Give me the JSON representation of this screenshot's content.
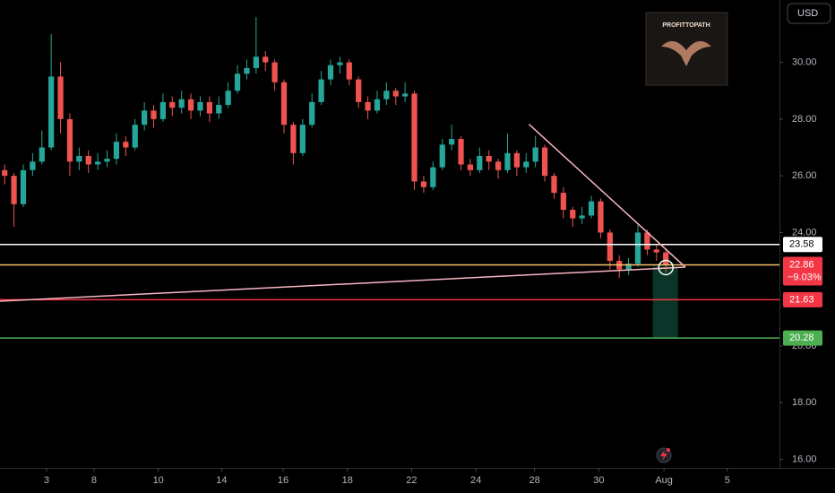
{
  "chart_data": {
    "type": "candlestick",
    "currency": "USD",
    "watermark": "PROFITTOPATH",
    "xlim": [
      -0.5,
      83.2
    ],
    "xticks": [
      {
        "value": 4.5,
        "label": "3"
      },
      {
        "value": 9.6,
        "label": "8"
      },
      {
        "value": 16.5,
        "label": "10"
      },
      {
        "value": 23.3,
        "label": "14"
      },
      {
        "value": 29.9,
        "label": "16"
      },
      {
        "value": 36.8,
        "label": "18"
      },
      {
        "value": 43.7,
        "label": "22"
      },
      {
        "value": 50.6,
        "label": "24"
      },
      {
        "value": 56.9,
        "label": "28"
      },
      {
        "value": 63.8,
        "label": "30"
      },
      {
        "value": 70.8,
        "label": "Aug"
      },
      {
        "value": 77.6,
        "label": "5"
      }
    ],
    "ylim": [
      15.7,
      32.2
    ],
    "yticks": [
      {
        "value": 16,
        "label": "16.00"
      },
      {
        "value": 18,
        "label": "18.00"
      },
      {
        "value": 20,
        "label": "20.00"
      },
      {
        "value": 24,
        "label": "24.00"
      },
      {
        "value": 26,
        "label": "26.00"
      },
      {
        "value": 28,
        "label": "28.00"
      },
      {
        "value": 30,
        "label": "30.00"
      }
    ],
    "up_color": "#26a69a",
    "down_color": "#ef5350",
    "open": [
      26.2,
      26.0,
      25.0,
      26.2,
      26.5,
      27.0,
      29.5,
      28.0,
      26.5,
      26.7,
      26.4,
      26.5,
      26.6,
      27.2,
      27.0,
      27.8,
      28.3,
      28.0,
      28.6,
      28.4,
      28.7,
      28.3,
      28.6,
      28.2,
      28.5,
      29.0,
      29.6,
      29.8,
      30.2,
      30.0,
      29.3,
      27.8,
      26.8,
      27.8,
      28.6,
      29.4,
      29.9,
      30.0,
      29.4,
      28.6,
      28.3,
      28.7,
      29.0,
      28.8,
      28.9,
      25.8,
      25.6,
      26.3,
      27.1,
      27.3,
      26.4,
      26.2,
      26.7,
      26.5,
      26.2,
      26.8,
      26.3,
      26.5,
      27.0,
      26.0,
      25.4,
      24.8,
      24.5,
      24.6,
      25.1,
      24.0,
      23.0,
      22.7,
      22.9,
      24.0,
      23.4,
      23.3
    ],
    "high": [
      26.4,
      26.1,
      26.4,
      26.8,
      27.6,
      31.0,
      30.0,
      28.2,
      27.0,
      26.9,
      26.8,
      26.9,
      27.5,
      27.4,
      28.0,
      28.6,
      28.5,
      28.9,
      28.8,
      29.0,
      28.9,
      28.8,
      28.8,
      28.8,
      29.3,
      29.9,
      30.1,
      31.6,
      30.4,
      30.1,
      29.4,
      27.9,
      28.0,
      28.9,
      29.7,
      30.1,
      30.2,
      30.1,
      29.5,
      28.8,
      29.0,
      29.3,
      29.1,
      29.3,
      29.0,
      26.0,
      26.5,
      27.3,
      27.8,
      27.4,
      26.6,
      27.0,
      26.9,
      26.6,
      27.5,
      26.9,
      26.8,
      27.4,
      27.1,
      26.1,
      25.6,
      24.9,
      24.9,
      25.3,
      25.2,
      24.1,
      23.2,
      23.1,
      24.3,
      24.1,
      23.6,
      23.4
    ],
    "low": [
      25.7,
      24.2,
      24.9,
      26.0,
      26.4,
      26.9,
      27.5,
      26.0,
      26.2,
      26.1,
      26.2,
      26.3,
      26.4,
      26.7,
      26.9,
      27.6,
      27.7,
      27.9,
      28.1,
      28.2,
      28.0,
      28.1,
      27.9,
      28.0,
      28.4,
      28.9,
      29.4,
      29.6,
      29.7,
      29.0,
      27.5,
      26.4,
      26.7,
      27.7,
      28.5,
      29.2,
      29.6,
      29.2,
      28.4,
      28.0,
      28.2,
      28.5,
      28.5,
      28.6,
      25.5,
      25.4,
      25.5,
      26.2,
      26.9,
      26.2,
      26.0,
      26.1,
      26.2,
      25.9,
      26.1,
      26.0,
      26.1,
      26.3,
      25.8,
      25.2,
      24.5,
      24.2,
      24.3,
      24.5,
      23.8,
      22.7,
      22.4,
      22.5,
      22.8,
      23.2,
      23.0,
      22.6
    ],
    "close": [
      26.0,
      25.0,
      26.2,
      26.5,
      27.0,
      29.5,
      28.0,
      26.5,
      26.7,
      26.4,
      26.5,
      26.6,
      27.2,
      27.0,
      27.8,
      28.3,
      28.0,
      28.6,
      28.4,
      28.7,
      28.3,
      28.6,
      28.2,
      28.5,
      29.0,
      29.6,
      29.8,
      30.2,
      30.0,
      29.3,
      27.8,
      26.8,
      27.8,
      28.6,
      29.4,
      29.9,
      30.0,
      29.4,
      28.6,
      28.3,
      28.7,
      29.0,
      28.8,
      28.9,
      25.8,
      25.6,
      26.3,
      27.1,
      27.3,
      26.4,
      26.2,
      26.7,
      26.5,
      26.2,
      26.8,
      26.3,
      26.5,
      27.0,
      26.0,
      25.4,
      24.8,
      24.5,
      24.6,
      25.1,
      24.0,
      23.0,
      22.7,
      22.9,
      24.0,
      23.4,
      23.3,
      22.86
    ],
    "levels": [
      {
        "value": 23.58,
        "color": "#ffffff",
        "label_color": "#ffffff",
        "text_color": "#000000"
      },
      {
        "value": 22.86,
        "color": "#f7c46c",
        "label_color": "#f23645",
        "text_color": "#ffffff"
      },
      {
        "value": 21.63,
        "color": "#f23645",
        "label_color": "#f23645",
        "text_color": "#ffffff"
      },
      {
        "value": 20.28,
        "color": "#4caf50",
        "label_color": "#4caf50",
        "text_color": "#ffffff"
      }
    ],
    "change_label": "−9.03%",
    "trendlines": [
      {
        "x": [
          56.3,
          73.1
        ],
        "y": [
          27.82,
          22.78
        ],
        "color": "#f8b4c0"
      },
      {
        "x": [
          -0.5,
          73.1
        ],
        "y": [
          21.58,
          22.78
        ],
        "color": "#f8b4c0"
      }
    ],
    "zone": {
      "x": [
        69.6,
        72.3
      ],
      "y": [
        22.8,
        20.28
      ],
      "color": "#0b3b2c"
    }
  }
}
